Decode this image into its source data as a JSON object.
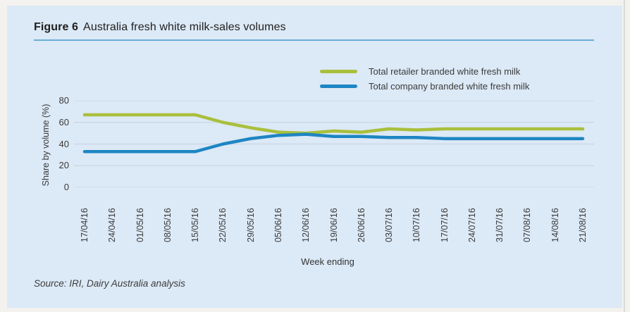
{
  "figure": {
    "label": "Figure 6",
    "title": "Australia fresh white milk-sales volumes",
    "source": "Source: IRI, Dairy Australia analysis"
  },
  "chart_data": {
    "type": "line",
    "title": "Australia fresh white milk-sales volumes",
    "xlabel": "Week ending",
    "ylabel": "Share by volume (%)",
    "ylim": [
      0,
      80
    ],
    "y_ticks": [
      0,
      20,
      40,
      60,
      80
    ],
    "grid": true,
    "legend_position": "top-right",
    "categories": [
      "17/04/16",
      "24/04/16",
      "01/05/16",
      "08/05/16",
      "15/05/16",
      "22/05/16",
      "29/05/16",
      "05/06/16",
      "12/06/16",
      "19/06/16",
      "26/06/16",
      "03/07/16",
      "10/07/16",
      "17/07/16",
      "24/07/16",
      "31/07/16",
      "07/08/16",
      "14/08/16",
      "21/08/16"
    ],
    "series": [
      {
        "name": "Total retailer branded white fresh milk",
        "color": "#a9bf3c",
        "values": [
          67,
          67,
          67,
          67,
          67,
          60,
          55,
          51,
          50,
          52,
          51,
          54,
          53,
          54,
          54,
          54,
          54,
          54,
          54
        ]
      },
      {
        "name": "Total company branded white fresh milk",
        "color": "#1e86c3",
        "values": [
          33,
          33,
          33,
          33,
          33,
          40,
          45,
          48,
          49,
          47,
          47,
          46,
          46,
          45,
          45,
          45,
          45,
          45,
          45
        ]
      }
    ]
  },
  "colors": {
    "panel_bg": "#dce9f6",
    "outer_bg": "#f3f2ef",
    "title_rule": "#68aed6",
    "gridline": "#c9d6e3",
    "text": "#3a3a3a"
  }
}
